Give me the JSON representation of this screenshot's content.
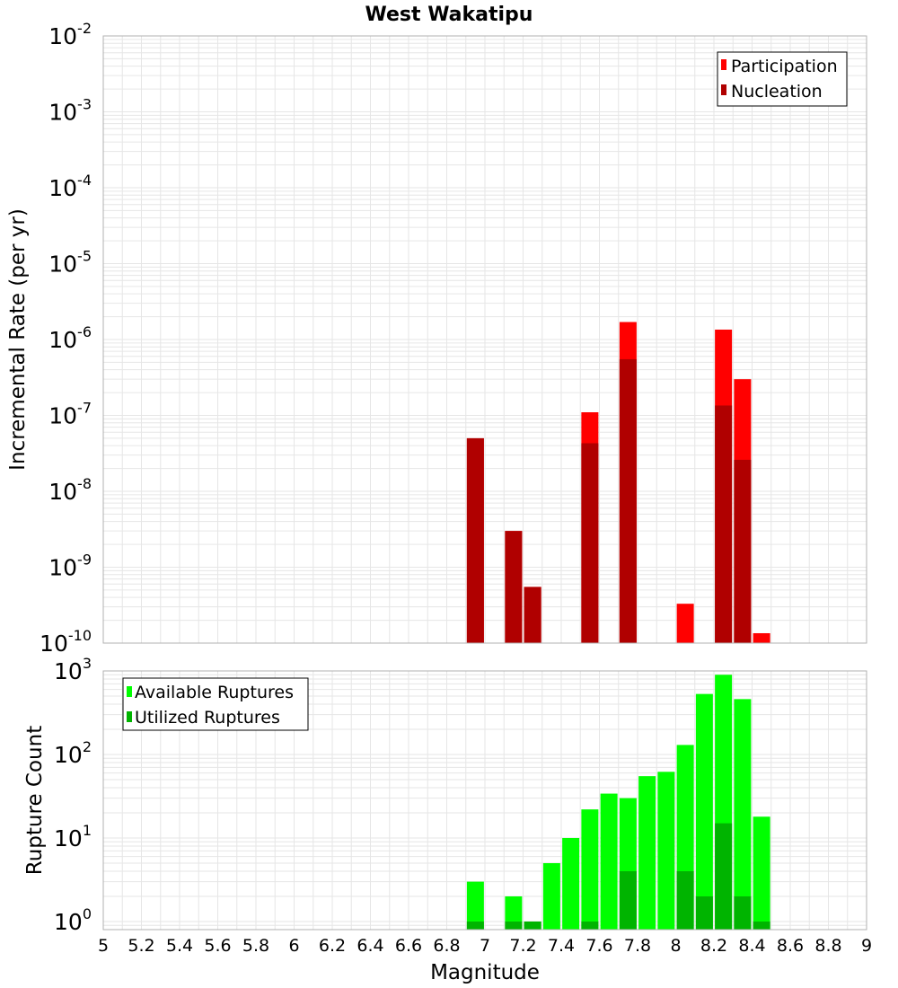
{
  "colors": {
    "participation": "#ff0000",
    "nucleation": "#b00000",
    "available": "#00ff00",
    "utilized": "#00b400",
    "grid": "#e6e6e6",
    "frame": "#b0b0b0"
  },
  "chart_data": [
    {
      "type": "bar",
      "title": "West Wakatipu",
      "xlabel": "Magnitude",
      "ylabel": "Incremental Rate (per yr)",
      "yscale": "log",
      "ylim": [
        1e-10,
        0.01
      ],
      "xlim": [
        5,
        9
      ],
      "grid": true,
      "legend_position": "top-right",
      "ytick_labels": [
        {
          "base": "10",
          "exp": "-10",
          "value": 1e-10
        },
        {
          "base": "10",
          "exp": "-9",
          "value": 1e-09
        },
        {
          "base": "10",
          "exp": "-8",
          "value": 1e-08
        },
        {
          "base": "10",
          "exp": "-7",
          "value": 1e-07
        },
        {
          "base": "10",
          "exp": "-6",
          "value": 1e-06
        },
        {
          "base": "10",
          "exp": "-5",
          "value": 1e-05
        },
        {
          "base": "10",
          "exp": "-4",
          "value": 0.0001
        },
        {
          "base": "10",
          "exp": "-3",
          "value": 0.001
        },
        {
          "base": "10",
          "exp": "-2",
          "value": 0.01
        }
      ],
      "series": [
        {
          "name": "Participation",
          "x": [
            6.95,
            7.15,
            7.25,
            7.55,
            7.75,
            8.05,
            8.25,
            8.35,
            8.45
          ],
          "values": [
            5e-08,
            3e-09,
            5.5e-10,
            1.1e-07,
            1.7e-06,
            3.3e-10,
            1.35e-06,
            3e-07,
            1.35e-10
          ]
        },
        {
          "name": "Nucleation",
          "x": [
            6.95,
            7.15,
            7.25,
            7.55,
            7.75,
            8.25,
            8.35
          ],
          "values": [
            5e-08,
            3e-09,
            5.5e-10,
            4.3e-08,
            5.5e-07,
            1.35e-07,
            2.6e-08
          ]
        }
      ]
    },
    {
      "type": "bar",
      "xlabel": "Magnitude",
      "ylabel": "Rupture Count",
      "yscale": "log",
      "ylim": [
        0.8,
        1000
      ],
      "xlim": [
        5,
        9
      ],
      "grid": true,
      "legend_position": "top-left",
      "ytick_labels": [
        {
          "base": "10",
          "exp": "0",
          "value": 1
        },
        {
          "base": "10",
          "exp": "1",
          "value": 10
        },
        {
          "base": "10",
          "exp": "2",
          "value": 100
        },
        {
          "base": "10",
          "exp": "3",
          "value": 1000
        }
      ],
      "x_tick_labels": [
        "5",
        "5.2",
        "5.4",
        "5.6",
        "5.8",
        "6",
        "6.2",
        "6.4",
        "6.6",
        "6.8",
        "7",
        "7.2",
        "7.4",
        "7.6",
        "7.8",
        "8",
        "8.2",
        "8.4",
        "8.6",
        "8.8",
        "9"
      ],
      "series": [
        {
          "name": "Available Ruptures",
          "x": [
            6.95,
            7.15,
            7.25,
            7.35,
            7.45,
            7.55,
            7.65,
            7.75,
            7.85,
            7.95,
            8.05,
            8.15,
            8.25,
            8.35,
            8.45
          ],
          "values": [
            3,
            2,
            1,
            5,
            10,
            22,
            34,
            30,
            55,
            62,
            130,
            530,
            900,
            460,
            18
          ]
        },
        {
          "name": "Utilized Ruptures",
          "x": [
            6.95,
            7.15,
            7.25,
            7.55,
            7.75,
            8.05,
            8.15,
            8.25,
            8.35,
            8.45
          ],
          "values": [
            1,
            1,
            1,
            1,
            4,
            4,
            2,
            15,
            2,
            1
          ]
        }
      ]
    }
  ]
}
